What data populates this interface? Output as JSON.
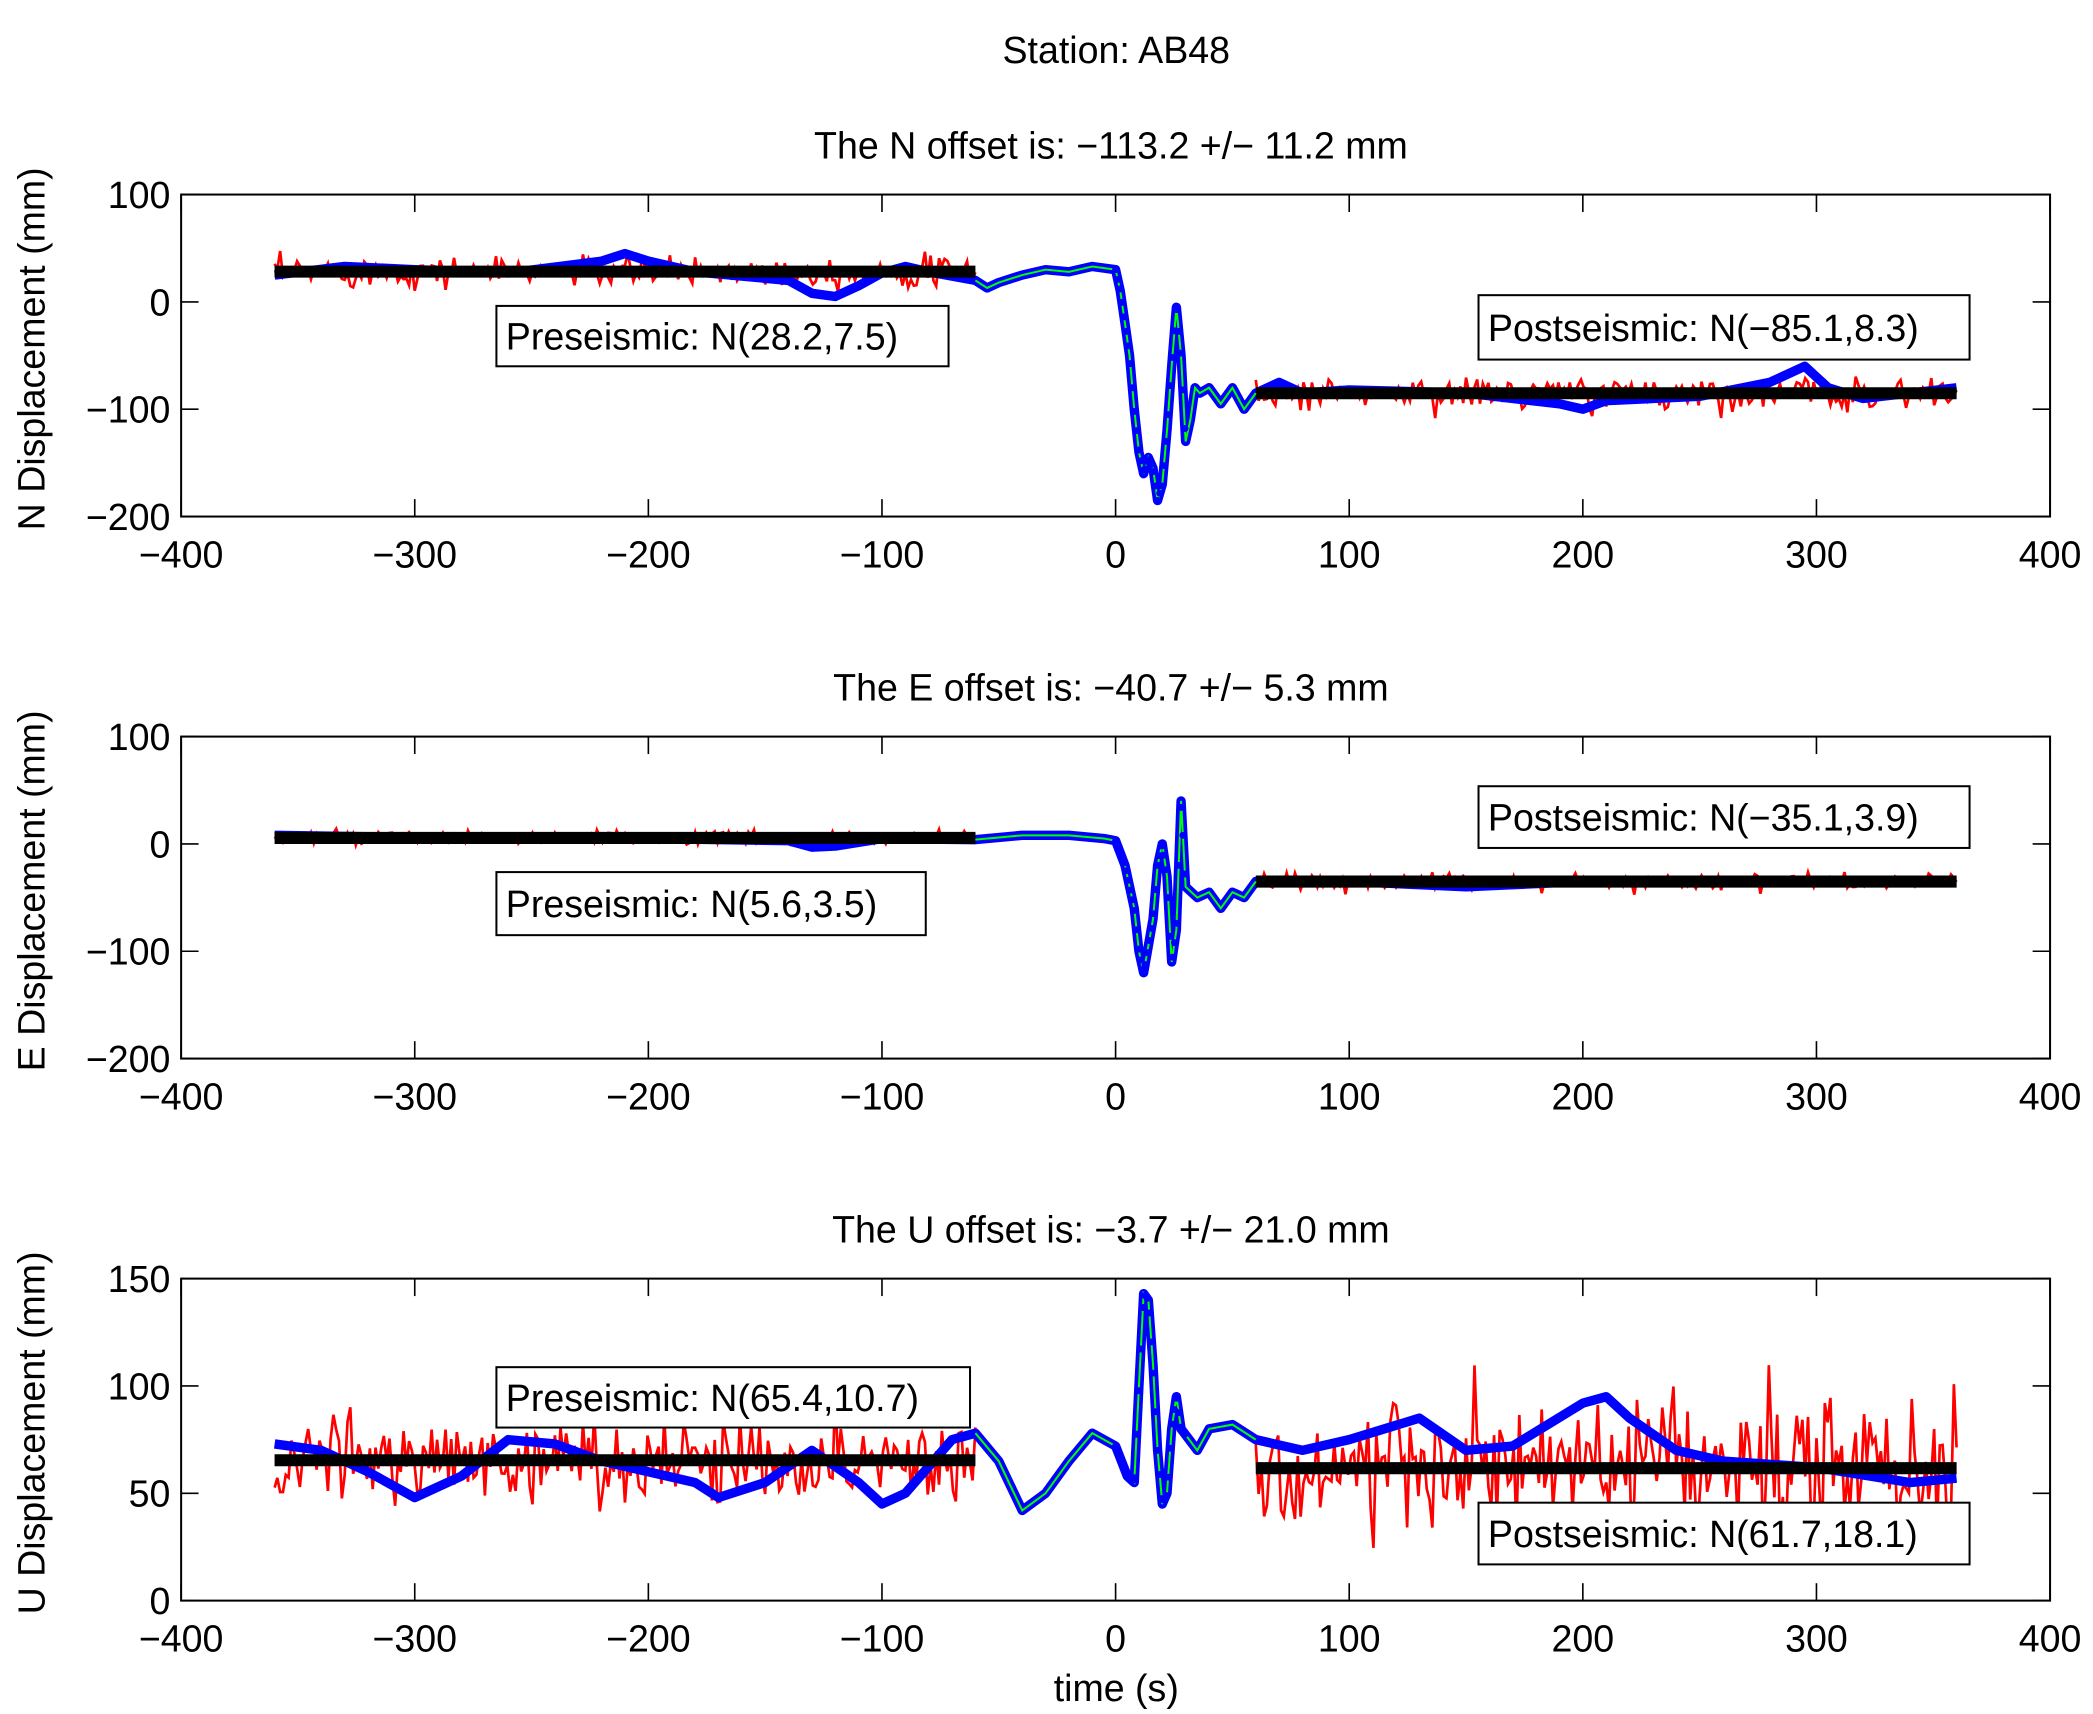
{
  "chart_data": {
    "type": "line",
    "title": "Station: AB48",
    "xlabel": "time (s)",
    "xlim": [
      -400,
      400
    ],
    "xticks": [
      -400,
      -300,
      -200,
      -100,
      0,
      100,
      200,
      300,
      400
    ],
    "xtick_labels": [
      "−400",
      "−300",
      "−200",
      "−100",
      "0",
      "100",
      "200",
      "300",
      "400"
    ],
    "colors": {
      "observed": "#0000ff",
      "interp": "#00ff00",
      "noise": "#ff0000",
      "fit": "#000000"
    },
    "panels": [
      {
        "title": "The N offset is: −113.2 +/− 11.2 mm",
        "ylabel": "N Displacement (mm)",
        "ylim": [
          -200,
          100
        ],
        "yticks": [
          -200,
          -100,
          0,
          100
        ],
        "ytick_labels": [
          "−200",
          "−100",
          "0",
          "100"
        ],
        "pre": {
          "label": "Preseismic: N(28.2,7.5)",
          "mean": 28.2,
          "std": 7.5,
          "range": [
            -360,
            -60
          ]
        },
        "post": {
          "label": "Postseismic: N(−85.1,8.3)",
          "mean": -85.1,
          "std": 8.3,
          "range": [
            60,
            360
          ]
        },
        "blue": [
          [
            -360,
            25
          ],
          [
            -330,
            33
          ],
          [
            -300,
            30
          ],
          [
            -260,
            27
          ],
          [
            -220,
            38
          ],
          [
            -210,
            45
          ],
          [
            -200,
            38
          ],
          [
            -180,
            28
          ],
          [
            -140,
            20
          ],
          [
            -130,
            8
          ],
          [
            -120,
            5
          ],
          [
            -110,
            15
          ],
          [
            -100,
            27
          ],
          [
            -90,
            33
          ],
          [
            -80,
            28
          ],
          [
            -60,
            20
          ],
          [
            -55,
            13
          ],
          [
            -50,
            18
          ],
          [
            -40,
            25
          ],
          [
            -30,
            30
          ],
          [
            -20,
            28
          ],
          [
            -10,
            33
          ],
          [
            0,
            30
          ],
          [
            2,
            10
          ],
          [
            4,
            -20
          ],
          [
            6,
            -50
          ],
          [
            8,
            -100
          ],
          [
            10,
            -140
          ],
          [
            12,
            -160
          ],
          [
            14,
            -145
          ],
          [
            16,
            -155
          ],
          [
            18,
            -185
          ],
          [
            20,
            -170
          ],
          [
            22,
            -120
          ],
          [
            24,
            -60
          ],
          [
            26,
            -5
          ],
          [
            28,
            -50
          ],
          [
            30,
            -130
          ],
          [
            32,
            -110
          ],
          [
            34,
            -80
          ],
          [
            36,
            -85
          ],
          [
            40,
            -80
          ],
          [
            45,
            -95
          ],
          [
            50,
            -80
          ],
          [
            55,
            -100
          ],
          [
            60,
            -85
          ],
          [
            70,
            -75
          ],
          [
            80,
            -85
          ],
          [
            100,
            -82
          ],
          [
            150,
            -85
          ],
          [
            190,
            -95
          ],
          [
            200,
            -100
          ],
          [
            210,
            -92
          ],
          [
            250,
            -88
          ],
          [
            280,
            -75
          ],
          [
            295,
            -60
          ],
          [
            305,
            -80
          ],
          [
            320,
            -90
          ],
          [
            340,
            -85
          ],
          [
            360,
            -80
          ]
        ]
      },
      {
        "title": "The E offset is: −40.7 +/− 5.3 mm",
        "ylabel": "E Displacement (mm)",
        "ylim": [
          -200,
          100
        ],
        "yticks": [
          -200,
          -100,
          0,
          100
        ],
        "ytick_labels": [
          "−200",
          "−100",
          "0",
          "100"
        ],
        "pre": {
          "label": "Preseismic: N(5.6,3.5)",
          "mean": 5.6,
          "std": 3.5,
          "range": [
            -360,
            -60
          ]
        },
        "post": {
          "label": "Postseismic: N(−35.1,3.9)",
          "mean": -35.1,
          "std": 3.9,
          "range": [
            60,
            360
          ]
        },
        "blue": [
          [
            -360,
            8
          ],
          [
            -300,
            6
          ],
          [
            -200,
            5
          ],
          [
            -140,
            3
          ],
          [
            -130,
            -3
          ],
          [
            -120,
            -2
          ],
          [
            -100,
            5
          ],
          [
            -60,
            4
          ],
          [
            -40,
            8
          ],
          [
            -20,
            8
          ],
          [
            -5,
            5
          ],
          [
            0,
            3
          ],
          [
            4,
            -20
          ],
          [
            8,
            -60
          ],
          [
            10,
            -100
          ],
          [
            12,
            -120
          ],
          [
            14,
            -95
          ],
          [
            16,
            -70
          ],
          [
            18,
            -20
          ],
          [
            20,
            0
          ],
          [
            22,
            -30
          ],
          [
            24,
            -110
          ],
          [
            26,
            -80
          ],
          [
            28,
            40
          ],
          [
            30,
            -40
          ],
          [
            35,
            -50
          ],
          [
            40,
            -45
          ],
          [
            45,
            -60
          ],
          [
            50,
            -45
          ],
          [
            55,
            -50
          ],
          [
            60,
            -35
          ],
          [
            100,
            -35
          ],
          [
            150,
            -40
          ],
          [
            200,
            -35
          ],
          [
            250,
            -35
          ],
          [
            300,
            -35
          ],
          [
            360,
            -35
          ]
        ]
      },
      {
        "title": "The U offset is: −3.7 +/− 21.0 mm",
        "ylabel": "U Displacement (mm)",
        "ylim": [
          0,
          150
        ],
        "yticks": [
          0,
          50,
          100,
          150
        ],
        "ytick_labels": [
          "0",
          "50",
          "100",
          "150"
        ],
        "pre": {
          "label": "Preseismic: N(65.4,10.7)",
          "mean": 65.4,
          "std": 10.7,
          "range": [
            -360,
            -60
          ]
        },
        "post": {
          "label": "Postseismic: N(61.7,18.1)",
          "mean": 61.7,
          "std": 18.1,
          "range": [
            60,
            360
          ]
        },
        "blue": [
          [
            -360,
            73
          ],
          [
            -340,
            70
          ],
          [
            -320,
            60
          ],
          [
            -300,
            48
          ],
          [
            -280,
            58
          ],
          [
            -260,
            75
          ],
          [
            -240,
            73
          ],
          [
            -220,
            65
          ],
          [
            -200,
            60
          ],
          [
            -180,
            55
          ],
          [
            -170,
            48
          ],
          [
            -150,
            55
          ],
          [
            -130,
            70
          ],
          [
            -110,
            55
          ],
          [
            -100,
            45
          ],
          [
            -90,
            50
          ],
          [
            -70,
            75
          ],
          [
            -60,
            78
          ],
          [
            -50,
            65
          ],
          [
            -40,
            42
          ],
          [
            -30,
            50
          ],
          [
            -20,
            65
          ],
          [
            -10,
            78
          ],
          [
            0,
            72
          ],
          [
            5,
            58
          ],
          [
            8,
            55
          ],
          [
            10,
            100
          ],
          [
            12,
            143
          ],
          [
            14,
            140
          ],
          [
            16,
            110
          ],
          [
            18,
            70
          ],
          [
            20,
            45
          ],
          [
            22,
            50
          ],
          [
            24,
            80
          ],
          [
            26,
            95
          ],
          [
            28,
            80
          ],
          [
            35,
            70
          ],
          [
            40,
            80
          ],
          [
            50,
            82
          ],
          [
            60,
            75
          ],
          [
            80,
            70
          ],
          [
            100,
            75
          ],
          [
            130,
            85
          ],
          [
            150,
            70
          ],
          [
            170,
            72
          ],
          [
            200,
            92
          ],
          [
            210,
            95
          ],
          [
            220,
            85
          ],
          [
            240,
            70
          ],
          [
            260,
            65
          ],
          [
            300,
            62
          ],
          [
            340,
            55
          ],
          [
            360,
            57
          ]
        ]
      }
    ]
  }
}
